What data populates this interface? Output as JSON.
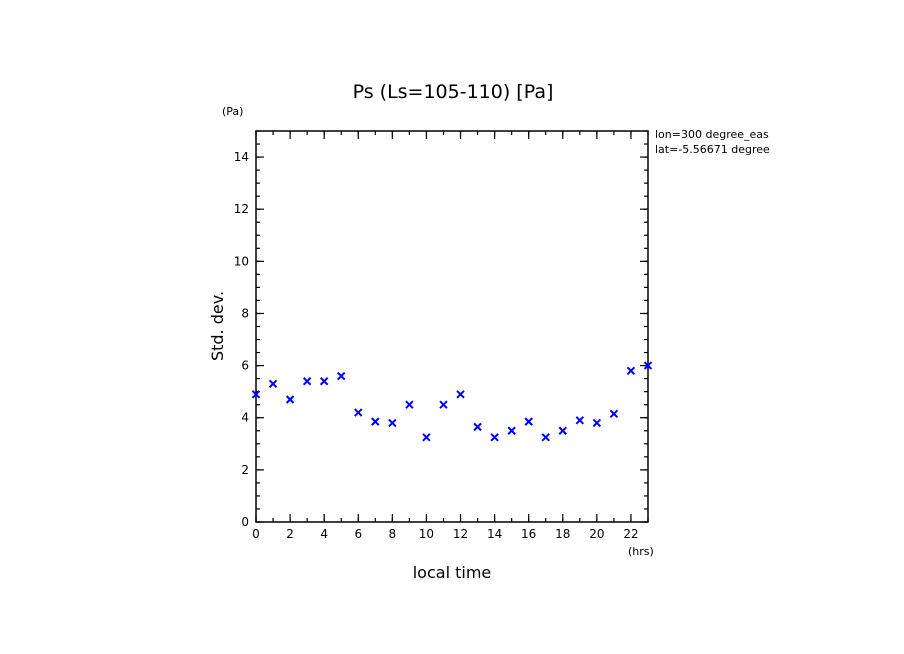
{
  "chart_data": {
    "type": "scatter",
    "title": "Ps (Ls=105-110) [Pa]",
    "xlabel": "local time",
    "ylabel": "Std. dev.",
    "x_unit": "(hrs)",
    "y_unit": "(Pa)",
    "xlim": [
      0,
      23
    ],
    "ylim": [
      0,
      15
    ],
    "x_ticks": [
      0,
      2,
      4,
      6,
      8,
      10,
      12,
      14,
      16,
      18,
      20,
      22
    ],
    "y_ticks": [
      0,
      2,
      4,
      6,
      8,
      10,
      12,
      14
    ],
    "annotations": [
      "lon=300 degree_eas",
      "lat=-5.56671 degree"
    ],
    "marker": "x",
    "marker_color": "#0000ff",
    "grid": false,
    "series": [
      {
        "x": [
          0,
          1,
          2,
          3,
          4,
          5,
          6,
          7,
          8,
          9,
          10,
          11,
          12,
          13,
          14,
          15,
          16,
          17,
          18,
          19,
          20,
          21,
          22,
          23
        ],
        "y": [
          4.9,
          5.3,
          4.7,
          5.4,
          5.4,
          5.6,
          4.2,
          3.85,
          3.8,
          4.5,
          3.25,
          4.5,
          4.9,
          3.65,
          3.25,
          3.5,
          3.85,
          3.25,
          3.5,
          3.9,
          3.8,
          4.15,
          5.8,
          6.0
        ]
      }
    ]
  }
}
